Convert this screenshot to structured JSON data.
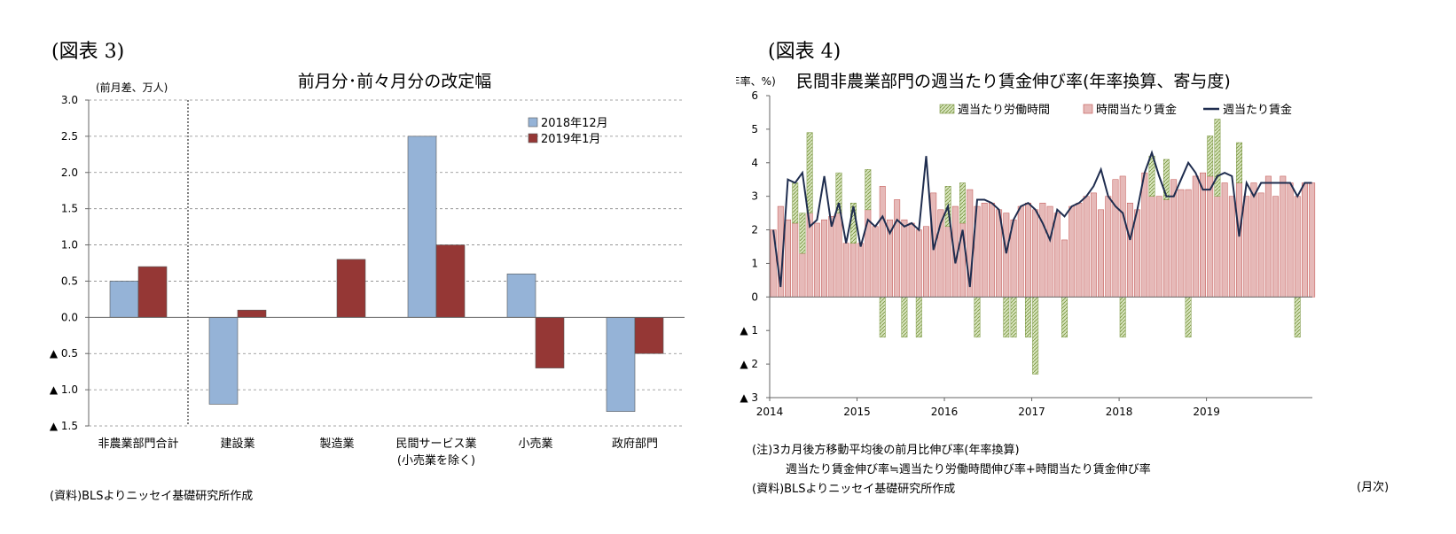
{
  "left": {
    "figure_label": "(図表 3)",
    "unit_label": "(前月差、万人)",
    "source": "(資料)BLSよりニッセイ基礎研究所作成",
    "colors": {
      "s2018_12": "#95B3D7",
      "s2019_01": "#953735"
    },
    "chart_data": {
      "type": "bar",
      "title": "前月分･前々月分の改定幅",
      "categories": [
        "非農業部門合計",
        "建設業",
        "製造業",
        "民間サービス業",
        "小売業",
        "政府部門"
      ],
      "category_sublabels": [
        "",
        "",
        "",
        "(小売業を除く)",
        "",
        ""
      ],
      "series": [
        {
          "name": "2018年12月",
          "values": [
            0.5,
            -1.2,
            0.0,
            2.5,
            0.6,
            -1.3
          ]
        },
        {
          "name": "2019年1月",
          "values": [
            0.7,
            0.1,
            0.8,
            1.0,
            -0.7,
            -0.5
          ]
        }
      ],
      "ylim": [
        -1.5,
        3.0
      ],
      "yticks": [
        3.0,
        2.5,
        2.0,
        1.5,
        1.0,
        0.5,
        0.0,
        -0.5,
        -1.0,
        -1.5
      ],
      "ytick_labels": [
        "3.0",
        "2.5",
        "2.0",
        "1.5",
        "1.0",
        "0.5",
        "0.0",
        "▲ 0.5",
        "▲ 1.0",
        "▲ 1.5"
      ],
      "grid": "horizontal dashed",
      "legend": "top-right"
    }
  },
  "right": {
    "figure_label": "(図表 4)",
    "unit_label": "(年率、%)",
    "note1": "(注)3カ月後方移動平均後の前月比伸び率(年率換算)",
    "note2": "週当たり賃金伸び率≒週当たり労働時間伸び率+時間当たり賃金伸び率",
    "source": "(資料)BLSよりニッセイ基礎研究所作成",
    "month_label": "(月次)",
    "colors": {
      "hours": "#D7E4BD",
      "hours_stroke": "#77933C",
      "wage": "#E6B9B8",
      "wage_stroke": "#C0504D",
      "line": "#1F2D4F"
    },
    "chart_data": {
      "type": "bar",
      "title": "民間非農業部門の週当たり賃金伸び率(年率換算、寄与度)",
      "x_labels": [
        "2014",
        "2015",
        "2016",
        "2017",
        "2018",
        "2019"
      ],
      "x_start": "2014-01",
      "ylim": [
        -3,
        6
      ],
      "yticks": [
        6,
        5,
        4,
        3,
        2,
        1,
        0,
        -1,
        -2,
        -3
      ],
      "ytick_labels": [
        "6",
        "5",
        "4",
        "3",
        "2",
        "1",
        "0",
        "▲ 1",
        "▲ 2",
        "▲ 3"
      ],
      "legend": "top",
      "series": [
        {
          "name": "週当たり労働時間",
          "kind": "bar-stacked",
          "values": [
            0.0,
            0.0,
            0.0,
            1.2,
            1.2,
            2.4,
            0.0,
            0.0,
            0.0,
            1.2,
            0.0,
            1.2,
            0.0,
            1.2,
            0.0,
            -1.2,
            0.0,
            0.0,
            -1.2,
            0.0,
            -1.2,
            0.0,
            0.0,
            0.0,
            1.2,
            0.0,
            1.2,
            0.0,
            -1.2,
            0.0,
            0.0,
            0.0,
            -1.2,
            -1.2,
            0.0,
            -1.2,
            -2.3,
            0.0,
            0.0,
            0.0,
            -1.2,
            0.0,
            0.0,
            0.0,
            0.0,
            0.0,
            0.0,
            0.0,
            -1.2,
            0.0,
            0.0,
            0.0,
            1.2,
            0.0,
            1.2,
            0.0,
            0.0,
            -1.2,
            0.0,
            0.0,
            1.2,
            2.3,
            0.0,
            0.0,
            1.2,
            0.0,
            0.0,
            0.0,
            0.0,
            0.0,
            0.0,
            0.0,
            -1.2,
            0.0,
            0.0
          ]
        },
        {
          "name": "時間当たり賃金",
          "kind": "bar",
          "values": [
            2.0,
            2.7,
            2.3,
            2.2,
            1.3,
            2.5,
            2.2,
            2.3,
            2.4,
            2.5,
            1.6,
            1.6,
            1.6,
            2.6,
            2.1,
            3.3,
            2.3,
            2.9,
            2.3,
            2.2,
            2.0,
            2.1,
            3.1,
            2.6,
            2.1,
            2.7,
            2.2,
            3.2,
            2.7,
            2.8,
            2.8,
            2.6,
            2.5,
            2.3,
            2.7,
            2.8,
            2.6,
            2.8,
            2.7,
            2.5,
            1.7,
            2.7,
            2.8,
            3.0,
            3.1,
            2.6,
            3.0,
            3.5,
            3.6,
            2.8,
            2.6,
            3.7,
            3.0,
            3.0,
            2.9,
            3.5,
            3.2,
            3.2,
            3.6,
            3.7,
            3.6,
            3.0,
            3.4,
            3.0,
            3.4,
            3.0,
            3.4,
            3.1,
            3.6,
            3.0,
            3.6,
            3.4,
            3.0,
            3.4,
            3.4
          ]
        },
        {
          "name": "週当たり賃金",
          "kind": "line",
          "values": [
            2.0,
            0.3,
            3.5,
            3.4,
            3.7,
            2.1,
            2.3,
            3.6,
            2.1,
            2.8,
            1.6,
            2.7,
            1.5,
            2.3,
            2.1,
            2.4,
            1.9,
            2.3,
            2.1,
            2.2,
            2.0,
            4.2,
            1.4,
            2.2,
            2.7,
            1.0,
            2.0,
            0.3,
            2.9,
            2.9,
            2.8,
            2.6,
            1.3,
            2.3,
            2.7,
            2.8,
            2.6,
            2.2,
            1.7,
            2.6,
            2.4,
            2.7,
            2.8,
            3.0,
            3.3,
            3.8,
            3.0,
            2.7,
            2.5,
            1.7,
            2.6,
            3.7,
            4.3,
            3.6,
            3.0,
            3.0,
            3.5,
            4.0,
            3.7,
            3.2,
            3.2,
            3.6,
            3.7,
            3.6,
            1.8,
            3.4,
            3.0,
            3.4,
            3.4,
            3.4,
            3.4,
            3.4,
            3.0,
            3.4,
            3.4
          ]
        }
      ]
    }
  }
}
